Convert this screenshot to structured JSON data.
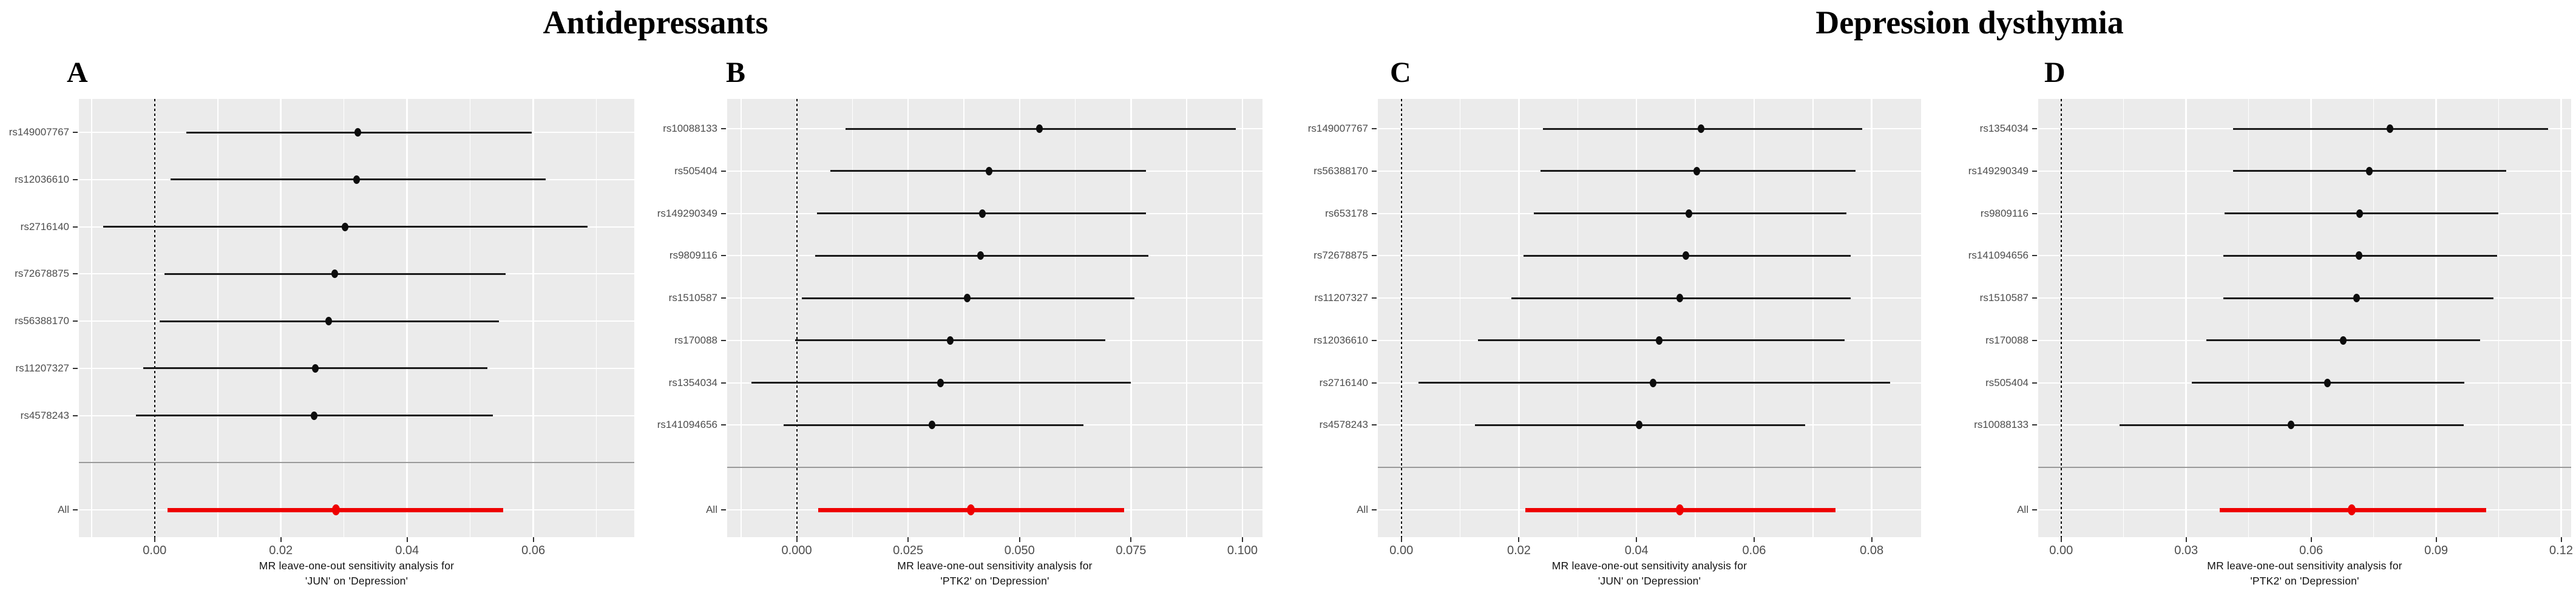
{
  "titles": {
    "left": "Antidepressants",
    "right": "Depression dysthymia"
  },
  "colors": {
    "all_row_accent": "#ee0000",
    "panel_background": "#ebebeb",
    "gridline": "#ffffff",
    "axis_text": "#4d4d4d",
    "point_and_whisker": "#1a1a1a"
  },
  "chart_data": [
    {
      "type": "forest",
      "panel_label": "A",
      "group": "Antidepressants",
      "caption_lines": [
        "MR leave-one-out sensitivity analysis for",
        "'JUN' on 'Depression'"
      ],
      "xlim": [
        -0.012,
        0.076
      ],
      "zero_line": 0,
      "tick_step": 0.02,
      "x_ticks": [
        {
          "value": 0.0,
          "label": "0.00"
        },
        {
          "value": 0.02,
          "label": "0.02"
        },
        {
          "value": 0.04,
          "label": "0.04"
        },
        {
          "value": 0.06,
          "label": "0.06"
        }
      ],
      "rows": [
        {
          "label": "rs149007767",
          "low": 0.005,
          "est": 0.0322,
          "high": 0.0597
        },
        {
          "label": "rs12036610",
          "low": 0.0025,
          "est": 0.032,
          "high": 0.062
        },
        {
          "label": "rs2716140",
          "low": -0.0082,
          "est": 0.0302,
          "high": 0.0686
        },
        {
          "label": "rs72678875",
          "low": 0.0016,
          "est": 0.0285,
          "high": 0.0556
        },
        {
          "label": "rs56388170",
          "low": 0.0008,
          "est": 0.0276,
          "high": 0.0546
        },
        {
          "label": "rs11207327",
          "low": -0.0018,
          "est": 0.0255,
          "high": 0.0527
        },
        {
          "label": "rs4578243",
          "low": -0.003,
          "est": 0.0253,
          "high": 0.0536
        }
      ],
      "all": {
        "label": "All",
        "low": 0.002,
        "est": 0.0287,
        "high": 0.0552
      }
    },
    {
      "type": "forest",
      "panel_label": "B",
      "group": "Antidepressants",
      "caption_lines": [
        "MR leave-one-out sensitivity analysis for",
        "'PTK2' on 'Depression'"
      ],
      "xlim": [
        -0.0156,
        0.1045
      ],
      "zero_line": 0,
      "tick_step": 0.025,
      "x_ticks": [
        {
          "value": 0.0,
          "label": "0.000"
        },
        {
          "value": 0.025,
          "label": "0.025"
        },
        {
          "value": 0.05,
          "label": "0.050"
        },
        {
          "value": 0.075,
          "label": "0.075"
        },
        {
          "value": 0.1,
          "label": "0.100"
        }
      ],
      "rows": [
        {
          "label": "rs10088133",
          "low": 0.011,
          "est": 0.0545,
          "high": 0.0985
        },
        {
          "label": "rs505404",
          "low": 0.0076,
          "est": 0.0432,
          "high": 0.0784
        },
        {
          "label": "rs149290349",
          "low": 0.0046,
          "est": 0.0416,
          "high": 0.0784
        },
        {
          "label": "rs9809116",
          "low": 0.0041,
          "est": 0.0413,
          "high": 0.0789
        },
        {
          "label": "rs1510587",
          "low": 0.0011,
          "est": 0.0383,
          "high": 0.0758
        },
        {
          "label": "rs170088",
          "low": -0.0004,
          "est": 0.0345,
          "high": 0.0692
        },
        {
          "label": "rs1354034",
          "low": -0.0102,
          "est": 0.0322,
          "high": 0.0749
        },
        {
          "label": "rs141094656",
          "low": -0.003,
          "est": 0.0304,
          "high": 0.0643
        }
      ],
      "all": {
        "label": "All",
        "low": 0.0048,
        "est": 0.0391,
        "high": 0.0735
      }
    },
    {
      "type": "forest",
      "panel_label": "C",
      "group": "Depression dysthymia",
      "caption_lines": [
        "MR leave-one-out sensitivity analysis for",
        "'JUN' on 'Depression'"
      ],
      "xlim": [
        -0.004,
        0.0884
      ],
      "zero_line": 0,
      "tick_step": 0.02,
      "x_ticks": [
        {
          "value": 0.0,
          "label": "0.00"
        },
        {
          "value": 0.02,
          "label": "0.02"
        },
        {
          "value": 0.04,
          "label": "0.04"
        },
        {
          "value": 0.06,
          "label": "0.06"
        },
        {
          "value": 0.08,
          "label": "0.08"
        }
      ],
      "rows": [
        {
          "label": "rs149007767",
          "low": 0.0241,
          "est": 0.051,
          "high": 0.0784
        },
        {
          "label": "rs56388170",
          "low": 0.0237,
          "est": 0.0503,
          "high": 0.0773
        },
        {
          "label": "rs653178",
          "low": 0.0225,
          "est": 0.0489,
          "high": 0.0757
        },
        {
          "label": "rs72678875",
          "low": 0.0208,
          "est": 0.0484,
          "high": 0.0764
        },
        {
          "label": "rs11207327",
          "low": 0.0187,
          "est": 0.0474,
          "high": 0.0764
        },
        {
          "label": "rs12036610",
          "low": 0.013,
          "est": 0.0439,
          "high": 0.0754
        },
        {
          "label": "rs2716140",
          "low": 0.0029,
          "est": 0.0428,
          "high": 0.0831
        },
        {
          "label": "rs4578243",
          "low": 0.0125,
          "est": 0.0404,
          "high": 0.0687
        }
      ],
      "all": {
        "label": "All",
        "low": 0.0211,
        "est": 0.0474,
        "high": 0.0738
      }
    },
    {
      "type": "forest",
      "panel_label": "D",
      "group": "Depression dysthymia",
      "caption_lines": [
        "MR leave-one-out sensitivity analysis for",
        "'PTK2' on 'Depression'"
      ],
      "xlim": [
        -0.0055,
        0.1224
      ],
      "zero_line": 0,
      "tick_step": 0.03,
      "x_ticks": [
        {
          "value": 0.0,
          "label": "0.00"
        },
        {
          "value": 0.03,
          "label": "0.03"
        },
        {
          "value": 0.06,
          "label": "0.06"
        },
        {
          "value": 0.09,
          "label": "0.09"
        },
        {
          "value": 0.12,
          "label": "0.12"
        }
      ],
      "rows": [
        {
          "label": "rs1354034",
          "low": 0.0412,
          "est": 0.0789,
          "high": 0.1168
        },
        {
          "label": "rs149290349",
          "low": 0.0412,
          "est": 0.074,
          "high": 0.1068
        },
        {
          "label": "rs9809116",
          "low": 0.0392,
          "est": 0.0717,
          "high": 0.1049
        },
        {
          "label": "rs141094656",
          "low": 0.0389,
          "est": 0.0715,
          "high": 0.1046
        },
        {
          "label": "rs1510587",
          "low": 0.039,
          "est": 0.0709,
          "high": 0.1037
        },
        {
          "label": "rs170088",
          "low": 0.0348,
          "est": 0.0677,
          "high": 0.1005
        },
        {
          "label": "rs505404",
          "low": 0.0313,
          "est": 0.0639,
          "high": 0.0967
        },
        {
          "label": "rs10088133",
          "low": 0.014,
          "est": 0.0552,
          "high": 0.0966
        }
      ],
      "all": {
        "label": "All",
        "low": 0.038,
        "est": 0.0698,
        "high": 0.102
      }
    }
  ]
}
